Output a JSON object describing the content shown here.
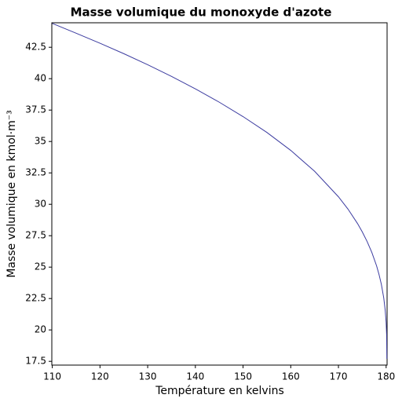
{
  "chart_data": {
    "type": "line",
    "title": "Masse volumique du monoxyde d'azote",
    "xlabel": "Température en kelvins",
    "ylabel": "Masse volumique en kmol·m⁻³",
    "x": [
      110,
      115,
      120,
      125,
      130,
      135,
      140,
      145,
      150,
      155,
      160,
      165,
      170,
      172,
      174,
      175,
      176,
      177,
      178,
      178.5,
      179,
      179.5,
      179.8,
      180,
      180.1,
      180.15
    ],
    "series": [
      {
        "name": "Masse volumique",
        "color": "#3c3ca0",
        "values": [
          44.4,
          43.62,
          42.82,
          41.99,
          41.11,
          40.18,
          39.19,
          38.13,
          36.98,
          35.72,
          34.29,
          32.63,
          30.6,
          29.62,
          28.47,
          27.8,
          27.05,
          26.17,
          25.1,
          24.43,
          23.63,
          22.55,
          21.59,
          20.59,
          19.67,
          17.7
        ]
      }
    ],
    "xlim": [
      109.9,
      180.2
    ],
    "xticks": [
      110,
      120,
      130,
      140,
      150,
      160,
      170,
      180
    ],
    "ylim": [
      17.2,
      44.45
    ],
    "yticks": [
      17.5,
      20,
      22.5,
      25,
      27.5,
      30,
      32.5,
      35,
      37.5,
      40,
      42.5
    ],
    "grid": false
  }
}
